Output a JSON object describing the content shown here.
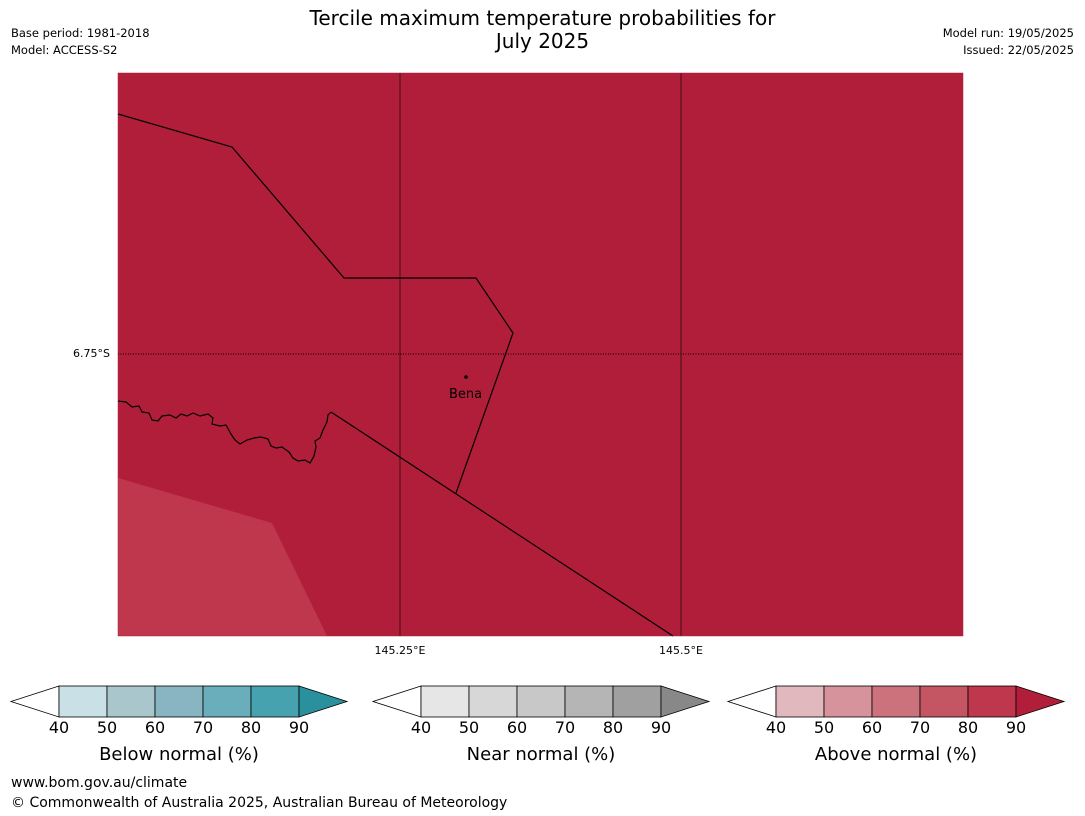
{
  "title_line1": "Tercile maximum temperature probabilities for",
  "title_line2": "July 2025",
  "meta_left": {
    "base_period": "Base period: 1981-2018",
    "model": "Model: ACCESS-S2"
  },
  "meta_right": {
    "model_run": "Model run: 19/05/2025",
    "issued": "Issued: 22/05/2025"
  },
  "map": {
    "lat_label": "6.75°S",
    "lon_labels": [
      "145.25°E",
      "145.5°E"
    ],
    "town": "Bena",
    "colors": {
      "fill_90": "#b11e3a",
      "fill_80": "#bf374d",
      "border": "#000000"
    }
  },
  "colorbars": [
    {
      "label": "Below normal (%)",
      "ticks": [
        "40",
        "50",
        "60",
        "70",
        "80",
        "90"
      ],
      "colors": [
        "#ffffff",
        "#c9e0e6",
        "#a8c6cc",
        "#89b4c2",
        "#6aadbb",
        "#45a2ae",
        "#2b909d"
      ]
    },
    {
      "label": "Near normal (%)",
      "ticks": [
        "40",
        "50",
        "60",
        "70",
        "80",
        "90"
      ],
      "colors": [
        "#ffffff",
        "#e6e6e6",
        "#d7d7d7",
        "#c8c8c8",
        "#b5b5b5",
        "#a0a0a0",
        "#888888"
      ]
    },
    {
      "label": "Above normal (%)",
      "ticks": [
        "40",
        "50",
        "60",
        "70",
        "80",
        "90"
      ],
      "colors": [
        "#ffffff",
        "#e2b8bf",
        "#d7939c",
        "#cc727c",
        "#c45562",
        "#bf374d",
        "#b11e3a"
      ]
    }
  ],
  "footer": {
    "url": "www.bom.gov.au/climate",
    "copyright": "© Commonwealth of Australia 2025, Australian Bureau of Meteorology"
  }
}
